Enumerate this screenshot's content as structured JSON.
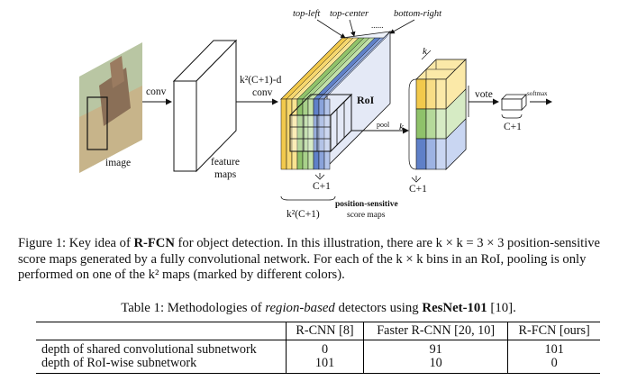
{
  "figure": {
    "labels": {
      "top_left": "top-left",
      "top_center": "top-center",
      "bottom_right": "bottom-right",
      "ellipsis": "......",
      "conv1": "conv",
      "image": "image",
      "k2c1d": "k²(C+1)-d",
      "conv2": "conv",
      "feature_maps_line1": "feature",
      "feature_maps_line2": "maps",
      "roi": "RoI",
      "pool": "pool",
      "k_side": "k",
      "k_top": "k",
      "c1_stack": "C+1",
      "k2c1": "k²(C+1)",
      "psm_line1": "position-sensitive",
      "psm_line2": "score maps",
      "c1_grid": "C+1",
      "vote": "vote",
      "c1_vec": "C+1",
      "softmax": "softmax"
    },
    "colors": {
      "yellow": "#f2c94c",
      "green": "#8fc26a",
      "blue": "#5f80c8",
      "light_yellow": "#fbe9a8",
      "light_green": "#d6ebc4",
      "light_blue": "#c9d6f2"
    }
  },
  "caption": {
    "prefix": "Figure 1: Key idea of ",
    "bold": "R-FCN",
    "text": " for object detection. In this illustration, there are k × k = 3 × 3 position-sensitive score maps generated by a fully convolutional network. For each of the k × k bins in an RoI, pooling is only performed on one of the k² maps (marked by different colors)."
  },
  "table_caption": {
    "prefix": "Table 1: Methodologies of ",
    "italic": "region-based",
    "middle": " detectors using ",
    "bold": "ResNet-101",
    "suffix": " [10]."
  },
  "table": {
    "headers": [
      "",
      "R-CNN [8]",
      "Faster R-CNN [20, 10]",
      "R-FCN [ours]"
    ],
    "rows": [
      [
        "depth of shared convolutional subnetwork",
        "0",
        "91",
        "101"
      ],
      [
        "depth of RoI-wise subnetwork",
        "101",
        "10",
        "0"
      ]
    ]
  }
}
